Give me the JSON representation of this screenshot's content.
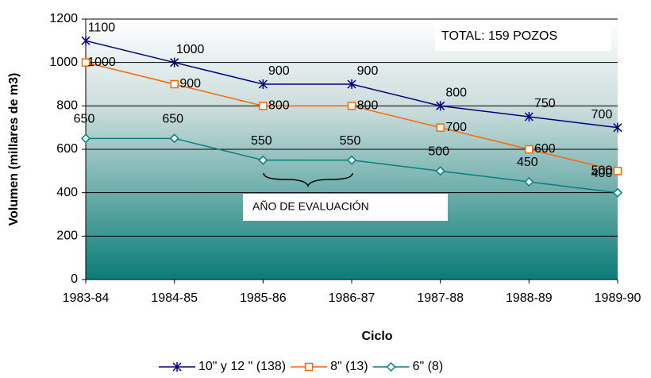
{
  "chart_data": {
    "type": "line",
    "x_label": "Ciclo",
    "y_label": "Volumen (millares de m3)",
    "categories": [
      "1983-84",
      "1984-85",
      "1985-86",
      "1986-87",
      "1987-88",
      "1988-89",
      "1989-90"
    ],
    "series": [
      {
        "name": "10\" y 12 \" (138)",
        "color": "#000080",
        "marker": "star",
        "values": [
          1100,
          1000,
          900,
          900,
          800,
          750,
          700
        ]
      },
      {
        "name": "8\" (13)",
        "color": "#ff6600",
        "marker": "square",
        "values": [
          1000,
          900,
          800,
          800,
          700,
          600,
          500
        ]
      },
      {
        "name": "6\" (8)",
        "color": "#008080",
        "marker": "diamond",
        "values": [
          650,
          650,
          550,
          550,
          500,
          450,
          400
        ]
      }
    ],
    "ylim": [
      0,
      1200
    ],
    "yticks": [
      0,
      200,
      400,
      600,
      800,
      1000,
      1200
    ],
    "grid": true,
    "legend": "bottom",
    "annotations": [
      "TOTAL: 159 POZOS",
      "AÑO DE EVALUACIÓN"
    ]
  }
}
